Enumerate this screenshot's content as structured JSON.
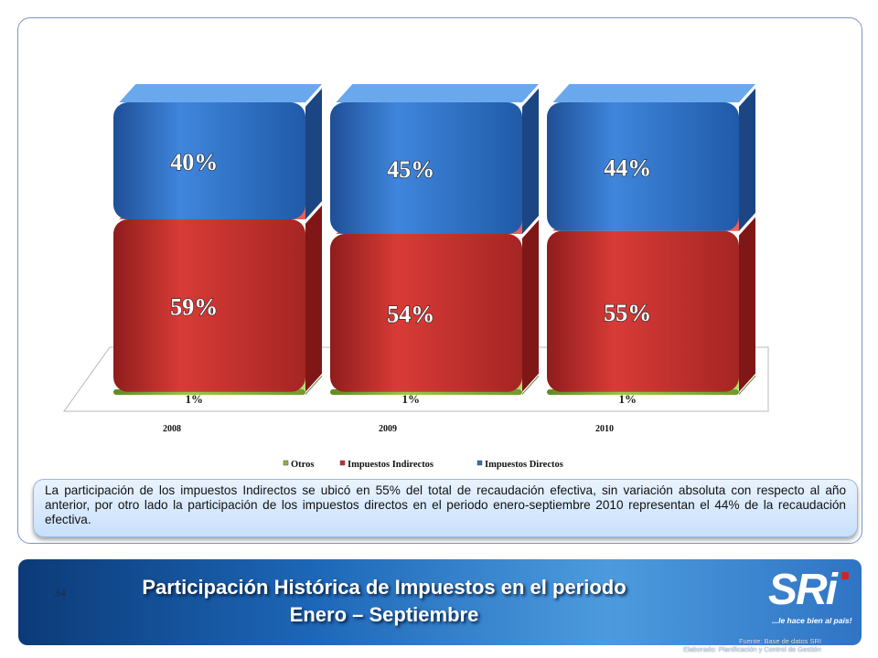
{
  "chart_data": {
    "type": "bar",
    "stacked": true,
    "style": "3d",
    "categories": [
      "2008",
      "2009",
      "2010"
    ],
    "series": [
      {
        "name": "Otros",
        "values": [
          1,
          1,
          1
        ],
        "labels": [
          "1%",
          "1%",
          "1%"
        ],
        "color": "#8cb33c"
      },
      {
        "name": "Impuestos Indirectos",
        "values": [
          59,
          54,
          55
        ],
        "labels": [
          "59%",
          "54%",
          "55%"
        ],
        "color": "#c02f2d"
      },
      {
        "name": "Impuestos Directos",
        "values": [
          40,
          45,
          44
        ],
        "labels": [
          "40%",
          "45%",
          "44%"
        ],
        "color": "#2f6fc4"
      }
    ],
    "legend_position": "bottom",
    "grid": false
  },
  "note": "La participación de los impuestos Indirectos se ubicó en 55% del total de recaudación efectiva, sin variación absoluta con respecto al año anterior, por otro lado la participación de los impuestos directos en el periodo enero-septiembre 2010 representan el 44% de la recaudación efectiva.",
  "footer": {
    "page_number": "34",
    "title_line1": "Participación Histórica de Impuestos en el periodo",
    "title_line2": "Enero – Septiembre",
    "logo_text": "SRi",
    "logo_tagline": "...le hace bien al país!",
    "source_line1": "Fuente: Base de datos SRI",
    "source_line2": "Elaborado: Planificación y Control de Gestión"
  },
  "colors": {
    "footer_band": "#1d67b8",
    "note_background": "#d6e8fd",
    "frame_border": "#7a96c0"
  }
}
